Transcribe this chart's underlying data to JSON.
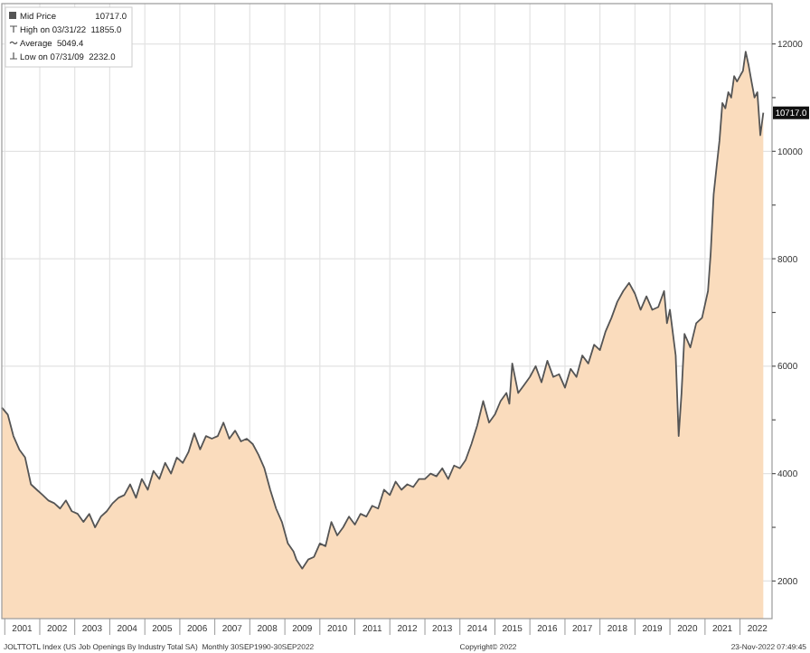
{
  "chart_data": {
    "type": "area",
    "legend": "top left",
    "grid": true,
    "xlim": [
      "2000-12-01",
      "2022-12-01"
    ],
    "xticks": [
      {
        "value": "2001-01",
        "label": null
      },
      {
        "value": "2001-07",
        "label": "2001"
      },
      {
        "value": "2002-01",
        "label": null
      },
      {
        "value": "2002-07",
        "label": "2002"
      },
      {
        "value": "2003-01",
        "label": null
      },
      {
        "value": "2003-07",
        "label": "2003"
      },
      {
        "value": "2004-01",
        "label": null
      },
      {
        "value": "2004-07",
        "label": "2004"
      },
      {
        "value": "2005-01",
        "label": null
      },
      {
        "value": "2005-07",
        "label": "2005"
      },
      {
        "value": "2006-01",
        "label": null
      },
      {
        "value": "2006-07",
        "label": "2006"
      },
      {
        "value": "2007-01",
        "label": null
      },
      {
        "value": "2007-07",
        "label": "2007"
      },
      {
        "value": "2008-01",
        "label": null
      },
      {
        "value": "2008-07",
        "label": "2008"
      },
      {
        "value": "2009-01",
        "label": null
      },
      {
        "value": "2009-07",
        "label": "2009"
      },
      {
        "value": "2010-01",
        "label": null
      },
      {
        "value": "2010-07",
        "label": "2010"
      },
      {
        "value": "2011-01",
        "label": null
      },
      {
        "value": "2011-07",
        "label": "2011"
      },
      {
        "value": "2012-01",
        "label": null
      },
      {
        "value": "2012-07",
        "label": "2012"
      },
      {
        "value": "2013-01",
        "label": null
      },
      {
        "value": "2013-07",
        "label": "2013"
      },
      {
        "value": "2014-01",
        "label": null
      },
      {
        "value": "2014-07",
        "label": "2014"
      },
      {
        "value": "2015-01",
        "label": null
      },
      {
        "value": "2015-07",
        "label": "2015"
      },
      {
        "value": "2016-01",
        "label": null
      },
      {
        "value": "2016-07",
        "label": "2016"
      },
      {
        "value": "2017-01",
        "label": null
      },
      {
        "value": "2017-07",
        "label": "2017"
      },
      {
        "value": "2018-01",
        "label": null
      },
      {
        "value": "2018-07",
        "label": "2018"
      },
      {
        "value": "2019-01",
        "label": null
      },
      {
        "value": "2019-07",
        "label": "2019"
      },
      {
        "value": "2020-01",
        "label": null
      },
      {
        "value": "2020-07",
        "label": "2020"
      },
      {
        "value": "2021-01",
        "label": null
      },
      {
        "value": "2021-07",
        "label": "2021"
      },
      {
        "value": "2022-01",
        "label": null
      },
      {
        "value": "2022-07",
        "label": "2022"
      }
    ],
    "ylim": [
      1300,
      12750
    ],
    "yticks": [
      2000,
      {
        "value": 3000,
        "label": null
      },
      4000,
      {
        "value": 5000,
        "label": null
      },
      6000,
      {
        "value": 7000,
        "label": null
      },
      8000,
      {
        "value": 9000,
        "label": null
      },
      10000,
      {
        "value": 11000,
        "label": null
      },
      12000
    ],
    "annotations": [
      {
        "text": "10717.0",
        "x": "2022-09",
        "y": 10717
      },
      "High on 03/31/22  11855.0",
      "Average  5049.4",
      "Low on 07/31/09  2232.0",
      "JOLTTOTL Index (US Job Openings By Industry Total SA)  Monthly 30SEP1990-30SEP2022",
      "Copyright© 2022",
      "23-Nov-2022 07:49:45"
    ],
    "series": [
      {
        "name": "Mid Price",
        "color": "#555555",
        "x": [
          "2000-12",
          "2001-02",
          "2001-04",
          "2001-06",
          "2001-08",
          "2001-10",
          "2001-12",
          "2002-02",
          "2002-04",
          "2002-06",
          "2002-08",
          "2002-10",
          "2002-12",
          "2003-02",
          "2003-04",
          "2003-06",
          "2003-08",
          "2003-10",
          "2003-12",
          "2004-02",
          "2004-04",
          "2004-06",
          "2004-08",
          "2004-10",
          "2004-12",
          "2005-02",
          "2005-04",
          "2005-06",
          "2005-08",
          "2005-10",
          "2005-12",
          "2006-02",
          "2006-04",
          "2006-06",
          "2006-08",
          "2006-10",
          "2006-12",
          "2007-02",
          "2007-04",
          "2007-06",
          "2007-08",
          "2007-10",
          "2007-12",
          "2008-02",
          "2008-04",
          "2008-06",
          "2008-08",
          "2008-10",
          "2008-12",
          "2009-02",
          "2009-04",
          "2009-05",
          "2009-07",
          "2009-09",
          "2009-11",
          "2010-01",
          "2010-03",
          "2010-05",
          "2010-07",
          "2010-09",
          "2010-11",
          "2011-01",
          "2011-03",
          "2011-05",
          "2011-07",
          "2011-09",
          "2011-11",
          "2012-01",
          "2012-03",
          "2012-05",
          "2012-07",
          "2012-09",
          "2012-11",
          "2013-01",
          "2013-03",
          "2013-05",
          "2013-07",
          "2013-09",
          "2013-11",
          "2014-01",
          "2014-03",
          "2014-05",
          "2014-07",
          "2014-09",
          "2014-11",
          "2015-01",
          "2015-03",
          "2015-05",
          "2015-06",
          "2015-07",
          "2015-09",
          "2015-11",
          "2016-01",
          "2016-03",
          "2016-05",
          "2016-07",
          "2016-09",
          "2016-11",
          "2017-01",
          "2017-03",
          "2017-05",
          "2017-07",
          "2017-09",
          "2017-11",
          "2018-01",
          "2018-03",
          "2018-05",
          "2018-07",
          "2018-09",
          "2018-11",
          "2019-01",
          "2019-03",
          "2019-05",
          "2019-07",
          "2019-09",
          "2019-11",
          "2019-12",
          "2020-01",
          "2020-03",
          "2020-04",
          "2020-05",
          "2020-06",
          "2020-08",
          "2020-10",
          "2020-12",
          "2021-02",
          "2021-03",
          "2021-04",
          "2021-05",
          "2021-06",
          "2021-07",
          "2021-08",
          "2021-09",
          "2021-10",
          "2021-11",
          "2021-12",
          "2022-01",
          "2022-02",
          "2022-03",
          "2022-04",
          "2022-05",
          "2022-06",
          "2022-07",
          "2022-08",
          "2022-09"
        ],
        "values": [
          5230,
          5100,
          4700,
          4450,
          4300,
          3800,
          3700,
          3600,
          3500,
          3450,
          3350,
          3500,
          3300,
          3250,
          3100,
          3250,
          3000,
          3200,
          3300,
          3450,
          3550,
          3600,
          3800,
          3550,
          3900,
          3700,
          4050,
          3900,
          4200,
          4000,
          4300,
          4200,
          4400,
          4750,
          4450,
          4700,
          4650,
          4700,
          4950,
          4650,
          4800,
          4600,
          4650,
          4550,
          4350,
          4100,
          3700,
          3350,
          3100,
          2700,
          2550,
          2400,
          2232,
          2400,
          2450,
          2700,
          2650,
          3100,
          2850,
          3000,
          3200,
          3050,
          3250,
          3200,
          3400,
          3350,
          3700,
          3600,
          3850,
          3700,
          3800,
          3750,
          3900,
          3900,
          4000,
          3950,
          4100,
          3900,
          4150,
          4100,
          4250,
          4550,
          4900,
          5350,
          4950,
          5100,
          5350,
          5500,
          5300,
          6050,
          5500,
          5650,
          5800,
          6000,
          5700,
          6100,
          5800,
          5850,
          5600,
          5950,
          5800,
          6200,
          6050,
          6400,
          6300,
          6650,
          6900,
          7200,
          7400,
          7550,
          7350,
          7050,
          7300,
          7050,
          7100,
          7400,
          6800,
          7050,
          6200,
          4700,
          5500,
          6600,
          6350,
          6800,
          6900,
          7400,
          8100,
          9200,
          9700,
          10200,
          10900,
          10800,
          11100,
          11000,
          11400,
          11300,
          11400,
          11500,
          11855,
          11600,
          11300,
          11000,
          11100,
          10300,
          10717
        ]
      }
    ]
  }
}
